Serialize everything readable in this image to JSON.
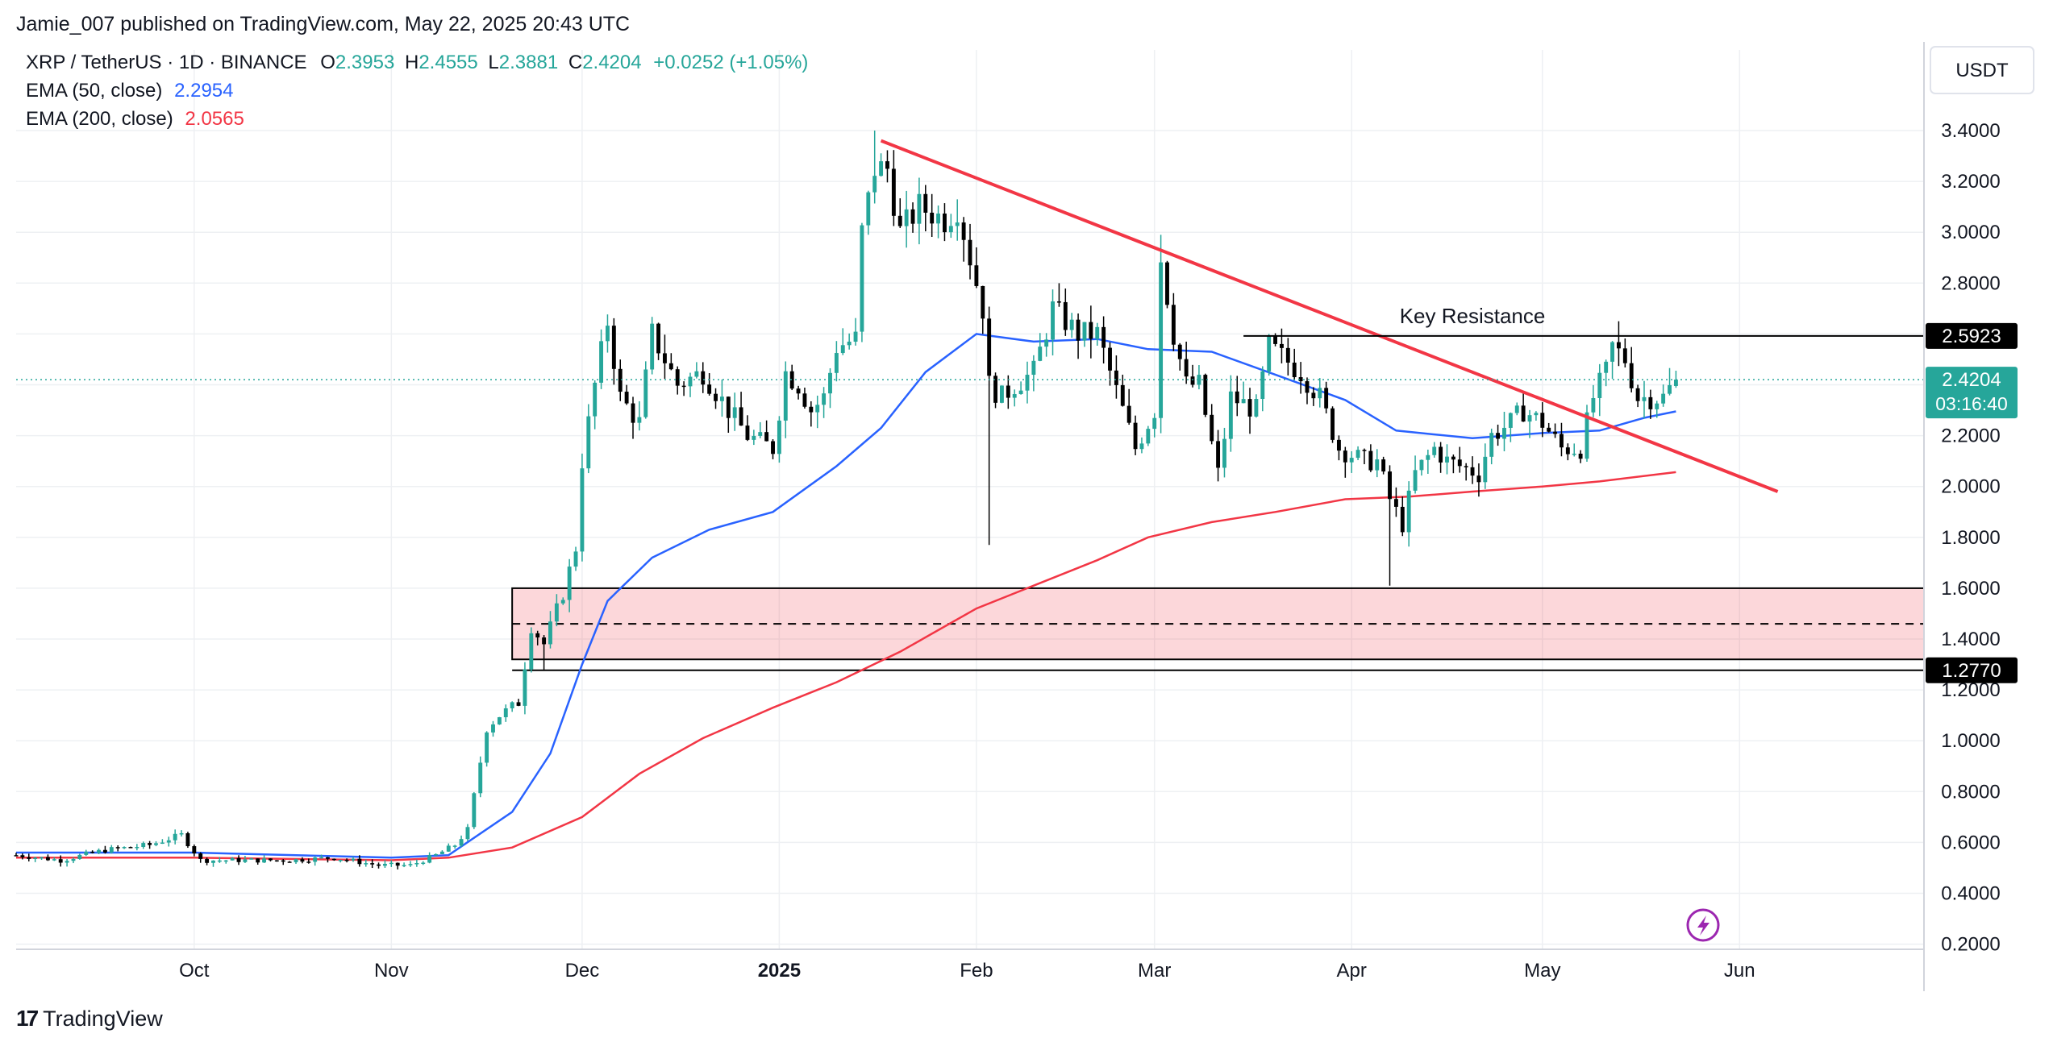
{
  "publisher_line": "Jamie_007 published on TradingView.com, May 22, 2025 20:43 UTC",
  "brand": {
    "mark": "17",
    "name": "TradingView"
  },
  "legend": {
    "symbol": "XRP / TetherUS · 1D · BINANCE",
    "o_label": "O",
    "o_value": "2.3953",
    "h_label": "H",
    "h_value": "2.4555",
    "l_label": "L",
    "l_value": "2.3881",
    "c_label": "C",
    "c_value": "2.4204",
    "change": "+0.0252 (+1.05%)",
    "ema50_label": "EMA (50, close)",
    "ema50_value": "2.2954",
    "ema200_label": "EMA (200, close)",
    "ema200_value": "2.0565"
  },
  "currency_label": "USDT",
  "colors": {
    "up": "#26a69a",
    "down": "#000000",
    "ema50": "#2962ff",
    "ema200": "#f23645",
    "trendline": "#f23645",
    "zone_fill": "#f23645",
    "grid": "#eef0f3",
    "price_tag": "#26a69a",
    "level_tag": "#000000",
    "text": "#131722"
  },
  "chart_data": {
    "type": "candlestick",
    "title": "XRP / TetherUS · 1D · BINANCE",
    "ylim": [
      0.2,
      3.4
    ],
    "y_scale": "linear",
    "grid": true,
    "y_ticks": [
      "3.4000",
      "3.2000",
      "3.0000",
      "2.8000",
      "2.6000",
      "2.4000",
      "2.2000",
      "2.0000",
      "1.8000",
      "1.6000",
      "1.4000",
      "1.2000",
      "1.0000",
      "0.8000",
      "0.6000",
      "0.4000",
      "0.2000"
    ],
    "x_axis": {
      "start": "2024-09-03",
      "end": "2025-06-30",
      "ticks": [
        {
          "date": "2024-10-01",
          "label": "Oct",
          "bold": false
        },
        {
          "date": "2024-11-01",
          "label": "Nov",
          "bold": false
        },
        {
          "date": "2024-12-01",
          "label": "Dec",
          "bold": false
        },
        {
          "date": "2025-01-01",
          "label": "2025",
          "bold": true
        },
        {
          "date": "2025-02-01",
          "label": "Feb",
          "bold": false
        },
        {
          "date": "2025-03-01",
          "label": "Mar",
          "bold": false
        },
        {
          "date": "2025-04-01",
          "label": "Apr",
          "bold": false
        },
        {
          "date": "2025-05-01",
          "label": "May",
          "bold": false
        },
        {
          "date": "2025-06-01",
          "label": "Jun",
          "bold": false
        }
      ]
    },
    "candle_anchors": [
      [
        "2024-09-03",
        0.55
      ],
      [
        "2024-09-10",
        0.53
      ],
      [
        "2024-09-17",
        0.57
      ],
      [
        "2024-09-24",
        0.59
      ],
      [
        "2024-09-29",
        0.63
      ],
      [
        "2024-10-02",
        0.53
      ],
      [
        "2024-10-09",
        0.53
      ],
      [
        "2024-10-16",
        0.53
      ],
      [
        "2024-10-23",
        0.54
      ],
      [
        "2024-10-30",
        0.51
      ],
      [
        "2024-11-04",
        0.51
      ],
      [
        "2024-11-08",
        0.55
      ],
      [
        "2024-11-11",
        0.59
      ],
      [
        "2024-11-13",
        0.65
      ],
      [
        "2024-11-16",
        1.05
      ],
      [
        "2024-11-18",
        1.1
      ],
      [
        "2024-11-21",
        1.15
      ],
      [
        "2024-11-23",
        1.45
      ],
      [
        "2024-11-25",
        1.38
      ],
      [
        "2024-11-28",
        1.58
      ],
      [
        "2024-11-30",
        1.76
      ],
      [
        "2024-12-01",
        2.1
      ],
      [
        "2024-12-03",
        2.4
      ],
      [
        "2024-12-05",
        2.65
      ],
      [
        "2024-12-07",
        2.35
      ],
      [
        "2024-12-10",
        2.25
      ],
      [
        "2024-12-12",
        2.6
      ],
      [
        "2024-12-16",
        2.4
      ],
      [
        "2024-12-20",
        2.45
      ],
      [
        "2024-12-24",
        2.3
      ],
      [
        "2024-12-27",
        2.2
      ],
      [
        "2024-12-31",
        2.15
      ],
      [
        "2025-01-02",
        2.45
      ],
      [
        "2025-01-04",
        2.4
      ],
      [
        "2025-01-06",
        2.3
      ],
      [
        "2025-01-08",
        2.35
      ],
      [
        "2025-01-10",
        2.55
      ],
      [
        "2025-01-13",
        2.58
      ],
      [
        "2025-01-14",
        3.0
      ],
      [
        "2025-01-16",
        3.25
      ],
      [
        "2025-01-18",
        3.25
      ],
      [
        "2025-01-20",
        3.0
      ],
      [
        "2025-01-23",
        3.1
      ],
      [
        "2025-01-27",
        3.05
      ],
      [
        "2025-01-29",
        3.1
      ],
      [
        "2025-01-31",
        2.9
      ],
      [
        "2025-02-02",
        2.7
      ],
      [
        "2025-02-03",
        2.4
      ],
      [
        "2025-02-05",
        2.35
      ],
      [
        "2025-02-07",
        2.4
      ],
      [
        "2025-02-10",
        2.45
      ],
      [
        "2025-02-13",
        2.7
      ],
      [
        "2025-02-17",
        2.6
      ],
      [
        "2025-02-20",
        2.6
      ],
      [
        "2025-02-24",
        2.3
      ],
      [
        "2025-02-26",
        2.15
      ],
      [
        "2025-03-01",
        2.3
      ],
      [
        "2025-03-02",
        2.9
      ],
      [
        "2025-03-04",
        2.6
      ],
      [
        "2025-03-06",
        2.4
      ],
      [
        "2025-03-08",
        2.4
      ],
      [
        "2025-03-11",
        2.05
      ],
      [
        "2025-03-13",
        2.35
      ],
      [
        "2025-03-17",
        2.3
      ],
      [
        "2025-03-19",
        2.55
      ],
      [
        "2025-03-24",
        2.45
      ],
      [
        "2025-03-27",
        2.35
      ],
      [
        "2025-03-30",
        2.15
      ],
      [
        "2025-04-03",
        2.1
      ],
      [
        "2025-04-05",
        2.1
      ],
      [
        "2025-04-07",
        1.95
      ],
      [
        "2025-04-09",
        1.85
      ],
      [
        "2025-04-11",
        2.05
      ],
      [
        "2025-04-14",
        2.15
      ],
      [
        "2025-04-16",
        2.1
      ],
      [
        "2025-04-18",
        2.08
      ],
      [
        "2025-04-21",
        2.05
      ],
      [
        "2025-04-23",
        2.2
      ],
      [
        "2025-04-26",
        2.25
      ],
      [
        "2025-04-28",
        2.3
      ],
      [
        "2025-05-01",
        2.25
      ],
      [
        "2025-05-04",
        2.15
      ],
      [
        "2025-05-07",
        2.15
      ],
      [
        "2025-05-09",
        2.35
      ],
      [
        "2025-05-11",
        2.45
      ],
      [
        "2025-05-12",
        2.55
      ],
      [
        "2025-05-14",
        2.5
      ],
      [
        "2025-05-16",
        2.35
      ],
      [
        "2025-05-18",
        2.35
      ],
      [
        "2025-05-20",
        2.35
      ],
      [
        "2025-05-22",
        2.42
      ]
    ],
    "candle_extremes": [
      [
        "2025-01-16",
        3.4,
        "high"
      ],
      [
        "2025-03-02",
        2.99,
        "high"
      ],
      [
        "2025-05-13",
        2.65,
        "high"
      ],
      [
        "2025-04-07",
        1.61,
        "low"
      ],
      [
        "2025-02-03",
        1.77,
        "low"
      ],
      [
        "2024-11-25",
        1.28,
        "low"
      ]
    ],
    "series": [
      {
        "name": "EMA (50, close)",
        "points": [
          [
            "2024-09-03",
            0.56
          ],
          [
            "2024-10-01",
            0.56
          ],
          [
            "2024-11-01",
            0.54
          ],
          [
            "2024-11-10",
            0.55
          ],
          [
            "2024-11-20",
            0.72
          ],
          [
            "2024-11-26",
            0.95
          ],
          [
            "2024-12-01",
            1.3
          ],
          [
            "2024-12-05",
            1.55
          ],
          [
            "2024-12-12",
            1.72
          ],
          [
            "2024-12-21",
            1.83
          ],
          [
            "2024-12-31",
            1.9
          ],
          [
            "2025-01-10",
            2.08
          ],
          [
            "2025-01-17",
            2.23
          ],
          [
            "2025-01-24",
            2.45
          ],
          [
            "2025-02-01",
            2.6
          ],
          [
            "2025-02-10",
            2.57
          ],
          [
            "2025-02-20",
            2.58
          ],
          [
            "2025-02-28",
            2.54
          ],
          [
            "2025-03-10",
            2.53
          ],
          [
            "2025-03-20",
            2.44
          ],
          [
            "2025-03-31",
            2.34
          ],
          [
            "2025-04-08",
            2.22
          ],
          [
            "2025-04-20",
            2.19
          ],
          [
            "2025-05-01",
            2.21
          ],
          [
            "2025-05-10",
            2.22
          ],
          [
            "2025-05-17",
            2.27
          ],
          [
            "2025-05-22",
            2.2954
          ]
        ]
      },
      {
        "name": "EMA (200, close)",
        "points": [
          [
            "2024-09-03",
            0.54
          ],
          [
            "2024-10-01",
            0.54
          ],
          [
            "2024-11-01",
            0.53
          ],
          [
            "2024-11-10",
            0.54
          ],
          [
            "2024-11-20",
            0.58
          ],
          [
            "2024-12-01",
            0.7
          ],
          [
            "2024-12-10",
            0.87
          ],
          [
            "2024-12-20",
            1.01
          ],
          [
            "2024-12-31",
            1.13
          ],
          [
            "2025-01-10",
            1.23
          ],
          [
            "2025-01-20",
            1.35
          ],
          [
            "2025-02-01",
            1.52
          ],
          [
            "2025-02-10",
            1.61
          ],
          [
            "2025-02-20",
            1.71
          ],
          [
            "2025-02-28",
            1.8
          ],
          [
            "2025-03-10",
            1.86
          ],
          [
            "2025-03-20",
            1.9
          ],
          [
            "2025-03-31",
            1.95
          ],
          [
            "2025-04-10",
            1.96
          ],
          [
            "2025-04-20",
            1.98
          ],
          [
            "2025-05-01",
            2.0
          ],
          [
            "2025-05-10",
            2.02
          ],
          [
            "2025-05-22",
            2.0565
          ]
        ]
      }
    ],
    "annotations": {
      "trendline": [
        [
          "2025-01-17",
          3.36
        ],
        [
          "2025-06-07",
          1.98
        ]
      ],
      "key_resistance": {
        "label": "Key Resistance",
        "value": 2.5923,
        "from": "2025-03-15",
        "label_date": "2025-04-20",
        "tag": "2.5923"
      },
      "support_zone": {
        "from": "2024-11-20",
        "top": 1.6,
        "bottom": 1.32,
        "mid": 1.46
      },
      "support_line": {
        "value": 1.277,
        "from": "2024-11-20",
        "tag": "1.2770"
      },
      "last_price": {
        "value": 2.4204,
        "tag": "2.4204",
        "countdown": "03:16:40"
      }
    }
  }
}
